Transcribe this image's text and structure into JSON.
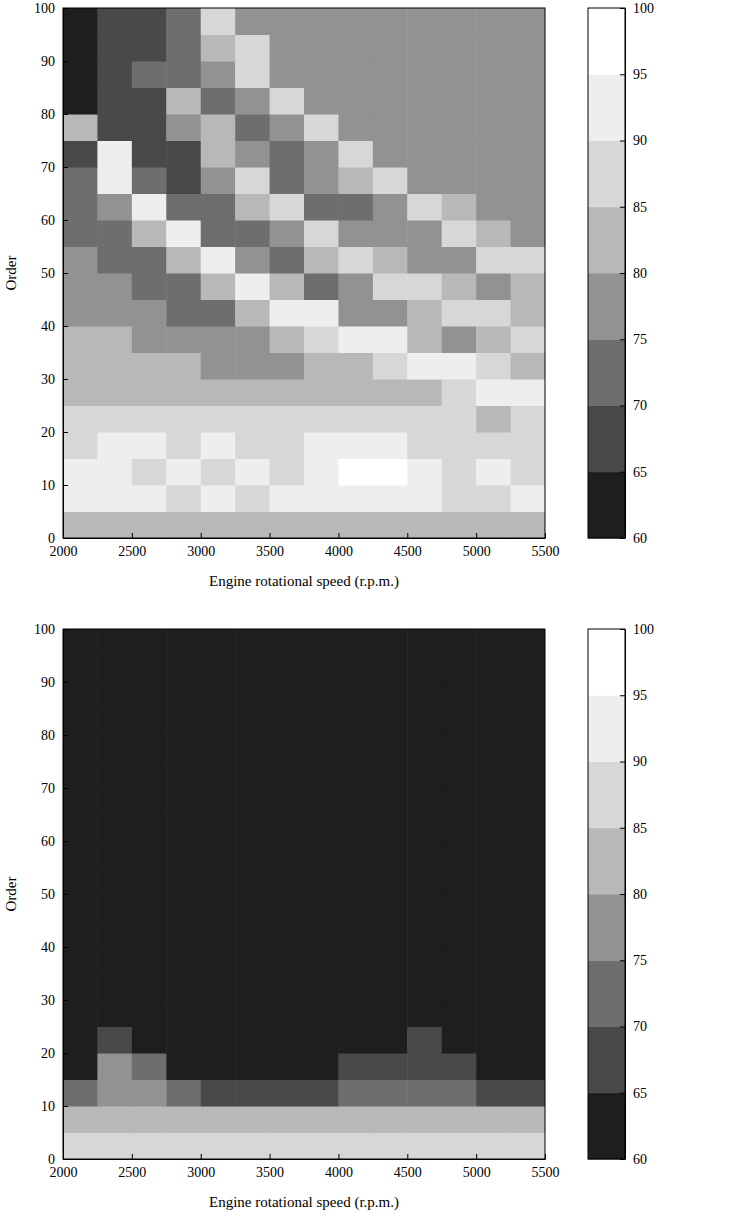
{
  "chart_data": [
    {
      "type": "heatmap",
      "x_label": "Engine rotational speed (r.p.m.)",
      "y_label": "Order",
      "x": [
        2125,
        2375,
        2625,
        2875,
        3125,
        3375,
        3625,
        3875,
        4125,
        4375,
        4625,
        4875,
        5125,
        5375
      ],
      "y": [
        2.5,
        7.5,
        12.5,
        17.5,
        22.5,
        27.5,
        32.5,
        37.5,
        42.5,
        47.5,
        52.5,
        57.5,
        62.5,
        67.5,
        72.5,
        77.5,
        82.5,
        87.5,
        92.5,
        97.5
      ],
      "cells": [
        [
          82,
          82,
          80,
          82,
          82,
          80,
          82,
          82,
          80,
          82,
          82,
          80,
          82,
          82
        ],
        [
          92,
          92,
          92,
          87,
          92,
          87,
          92,
          92,
          92,
          92,
          92,
          87,
          87,
          92
        ],
        [
          92,
          92,
          87,
          92,
          87,
          92,
          87,
          92,
          97,
          97,
          92,
          87,
          92,
          87
        ],
        [
          87,
          90,
          92,
          87,
          92,
          87,
          87,
          92,
          92,
          92,
          87,
          87,
          87,
          87
        ],
        [
          87,
          87,
          87,
          87,
          87,
          87,
          87,
          87,
          87,
          87,
          87,
          87,
          82,
          87
        ],
        [
          82,
          82,
          82,
          82,
          80,
          80,
          80,
          80,
          80,
          82,
          82,
          87,
          92,
          92
        ],
        [
          80,
          80,
          80,
          80,
          77,
          77,
          77,
          80,
          82,
          87,
          92,
          92,
          87,
          82
        ],
        [
          80,
          80,
          77,
          77,
          77,
          77,
          82,
          87,
          92,
          92,
          82,
          77,
          82,
          87
        ],
        [
          77,
          77,
          77,
          72,
          72,
          82,
          92,
          92,
          77,
          77,
          82,
          87,
          87,
          82
        ],
        [
          77,
          75,
          72,
          72,
          82,
          92,
          82,
          72,
          77,
          87,
          87,
          82,
          77,
          82
        ],
        [
          75,
          72,
          72,
          82,
          92,
          77,
          72,
          82,
          87,
          82,
          77,
          77,
          87,
          87
        ],
        [
          72,
          72,
          82,
          92,
          72,
          72,
          77,
          87,
          77,
          75,
          77,
          87,
          82,
          77
        ],
        [
          72,
          77,
          92,
          72,
          72,
          82,
          87,
          72,
          72,
          77,
          87,
          82,
          77,
          77
        ],
        [
          72,
          92,
          72,
          67,
          77,
          87,
          72,
          75,
          82,
          87,
          77,
          77,
          77,
          77
        ],
        [
          67,
          92,
          67,
          67,
          82,
          77,
          72,
          77,
          87,
          77,
          75,
          77,
          77,
          77
        ],
        [
          82,
          65,
          67,
          77,
          82,
          72,
          77,
          87,
          77,
          75,
          77,
          77,
          77,
          77
        ],
        [
          62,
          65,
          67,
          82,
          72,
          77,
          87,
          77,
          77,
          77,
          77,
          77,
          77,
          77
        ],
        [
          62,
          65,
          72,
          72,
          77,
          87,
          77,
          77,
          75,
          77,
          77,
          77,
          77,
          77
        ],
        [
          62,
          67,
          67,
          72,
          82,
          87,
          77,
          75,
          77,
          77,
          77,
          77,
          77,
          77
        ],
        [
          62,
          67,
          67,
          72,
          87,
          77,
          77,
          77,
          77,
          75,
          77,
          77,
          77,
          77
        ]
      ],
      "xlim": [
        2000,
        5500
      ],
      "xticks": [
        2000,
        2500,
        3000,
        3500,
        4000,
        4500,
        5000,
        5500
      ],
      "ylim": [
        0,
        100
      ],
      "yticks": [
        0,
        10,
        20,
        30,
        40,
        50,
        60,
        70,
        80,
        90,
        100
      ],
      "colorbar": {
        "range": [
          60,
          100
        ],
        "ticks": [
          60,
          65,
          70,
          75,
          80,
          85,
          90,
          95,
          100
        ]
      }
    },
    {
      "type": "heatmap",
      "x_label": "Engine rotational speed (r.p.m.)",
      "y_label": "Order",
      "x": [
        2125,
        2375,
        2625,
        2875,
        3125,
        3375,
        3625,
        3875,
        4125,
        4375,
        4625,
        4875,
        5125,
        5375
      ],
      "y": [
        2.5,
        7.5,
        12.5,
        17.5,
        22.5,
        27.5,
        32.5,
        37.5,
        42.5,
        47.5,
        52.5,
        57.5,
        62.5,
        67.5,
        72.5,
        77.5,
        82.5,
        87.5,
        92.5,
        97.5
      ],
      "cells": [
        [
          87,
          87,
          87,
          87,
          87,
          87,
          87,
          87,
          87,
          87,
          87,
          87,
          87,
          87
        ],
        [
          82,
          82,
          82,
          82,
          82,
          82,
          82,
          82,
          82,
          82,
          82,
          82,
          82,
          82
        ],
        [
          72,
          77,
          77,
          72,
          67,
          67,
          67,
          67,
          72,
          72,
          72,
          70,
          67,
          67
        ],
        [
          62,
          77,
          72,
          62,
          60,
          60,
          60,
          60,
          67,
          67,
          67,
          65,
          62,
          62
        ],
        [
          60,
          67,
          62,
          60,
          60,
          60,
          60,
          60,
          62,
          62,
          65,
          62,
          60,
          60
        ],
        [
          60,
          60,
          62,
          60,
          60,
          60,
          60,
          60,
          60,
          60,
          62,
          60,
          60,
          60
        ],
        [
          60,
          60,
          62,
          60,
          60,
          60,
          60,
          60,
          60,
          60,
          60,
          60,
          60,
          60
        ],
        [
          60,
          60,
          60,
          60,
          60,
          60,
          60,
          60,
          62,
          60,
          60,
          60,
          60,
          60
        ],
        [
          60,
          60,
          60,
          60,
          60,
          60,
          60,
          60,
          60,
          60,
          60,
          60,
          60,
          60
        ],
        [
          60,
          60,
          60,
          60,
          60,
          60,
          60,
          60,
          60,
          60,
          60,
          60,
          60,
          60
        ],
        [
          60,
          60,
          60,
          60,
          60,
          60,
          60,
          60,
          60,
          60,
          60,
          60,
          60,
          60
        ],
        [
          60,
          60,
          60,
          60,
          60,
          60,
          60,
          60,
          60,
          60,
          60,
          60,
          60,
          60
        ],
        [
          60,
          60,
          60,
          60,
          60,
          60,
          60,
          60,
          60,
          60,
          60,
          60,
          60,
          60
        ],
        [
          60,
          60,
          60,
          60,
          60,
          60,
          60,
          60,
          60,
          60,
          60,
          60,
          60,
          60
        ],
        [
          60,
          60,
          60,
          60,
          60,
          60,
          60,
          60,
          60,
          60,
          60,
          60,
          60,
          60
        ],
        [
          60,
          60,
          60,
          60,
          60,
          60,
          60,
          60,
          60,
          60,
          60,
          60,
          60,
          60
        ],
        [
          60,
          60,
          60,
          60,
          60,
          60,
          60,
          60,
          60,
          60,
          60,
          60,
          60,
          60
        ],
        [
          60,
          60,
          60,
          60,
          60,
          60,
          60,
          60,
          60,
          60,
          60,
          60,
          60,
          60
        ],
        [
          60,
          60,
          60,
          60,
          60,
          60,
          60,
          60,
          60,
          60,
          60,
          60,
          60,
          60
        ],
        [
          60,
          60,
          60,
          60,
          60,
          60,
          60,
          60,
          60,
          60,
          60,
          60,
          60,
          60
        ]
      ],
      "xlim": [
        2000,
        5500
      ],
      "xticks": [
        2000,
        2500,
        3000,
        3500,
        4000,
        4500,
        5000,
        5500
      ],
      "ylim": [
        0,
        100
      ],
      "yticks": [
        0,
        10,
        20,
        30,
        40,
        50,
        60,
        70,
        80,
        90,
        100
      ],
      "colorbar": {
        "range": [
          60,
          100
        ],
        "ticks": [
          60,
          65,
          70,
          75,
          80,
          85,
          90,
          95,
          100
        ]
      }
    }
  ]
}
